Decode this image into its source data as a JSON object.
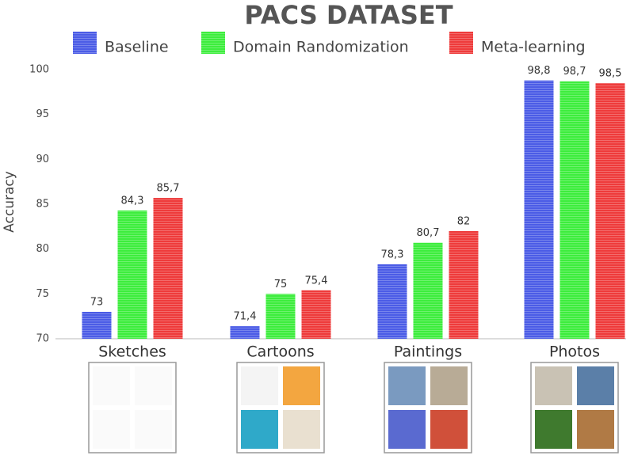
{
  "chart_data": {
    "type": "bar",
    "title": "PACS DATASET",
    "y_label": "Accuracy",
    "categories": [
      "Sketches",
      "Cartoons",
      "Paintings",
      "Photos"
    ],
    "series": [
      {
        "name": "Baseline",
        "color": "#4b5ce6",
        "values": [
          73,
          71.4,
          78.3,
          98.8
        ],
        "value_labels": [
          "73",
          "71,4",
          "78,3",
          "98,8"
        ]
      },
      {
        "name": "Domain Randomization",
        "color": "#3ded3d",
        "values": [
          84.3,
          75,
          80.7,
          98.7
        ],
        "value_labels": [
          "84,3",
          "75",
          "80,7",
          "98,7"
        ]
      },
      {
        "name": "Meta-learning",
        "color": "#ee3b3b",
        "values": [
          85.7,
          75.4,
          82,
          98.5
        ],
        "value_labels": [
          "85,7",
          "75,4",
          "82",
          "98,5"
        ]
      }
    ],
    "ylim": [
      70,
      100
    ],
    "yticks": [
      70,
      75,
      80,
      85,
      90,
      95,
      100
    ],
    "grid": false
  }
}
